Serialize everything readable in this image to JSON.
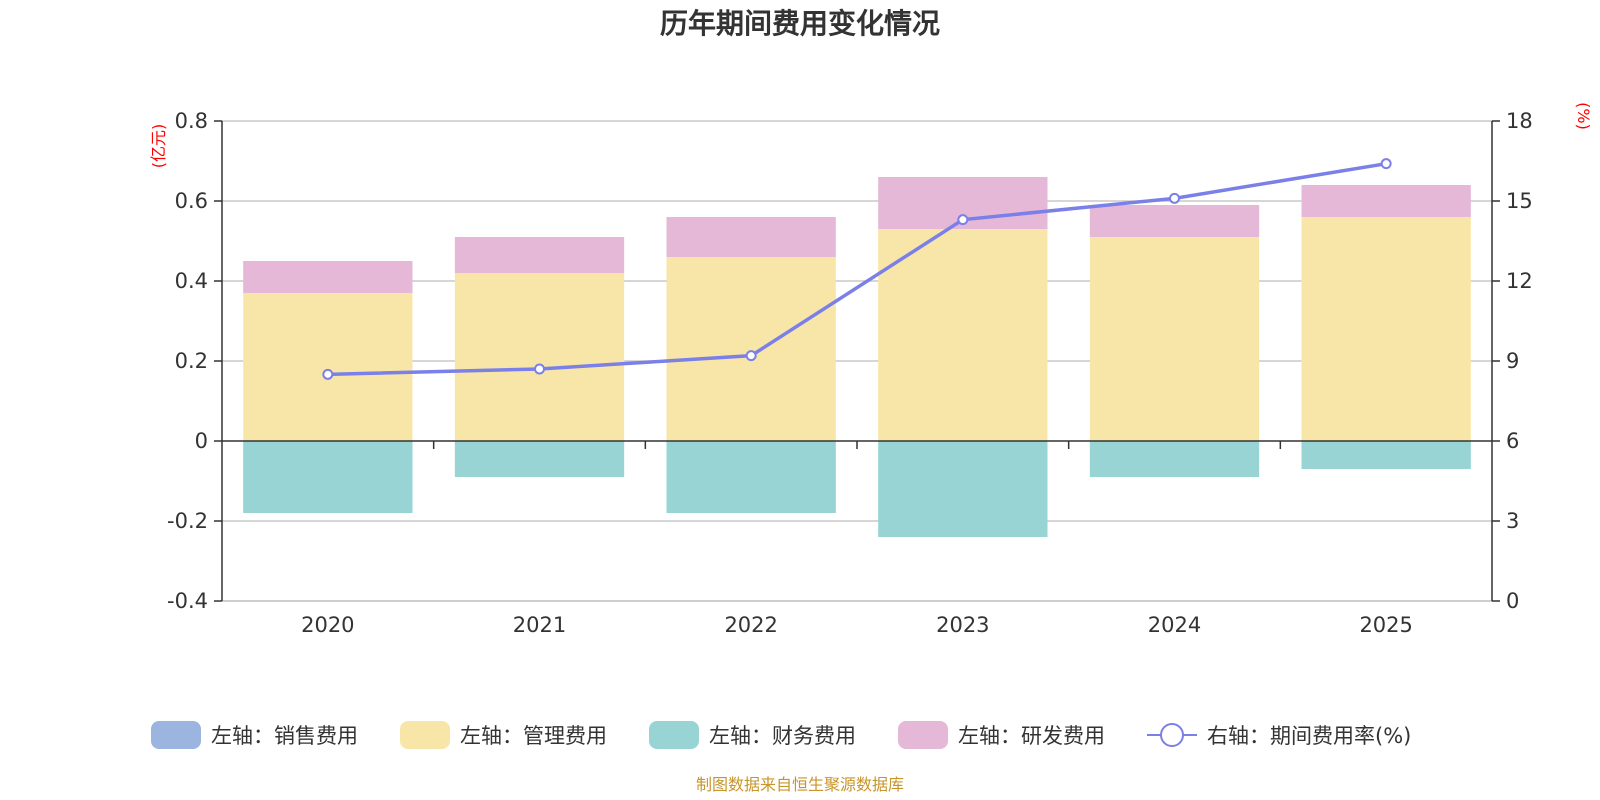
{
  "chart_data": {
    "type": "bar",
    "title": "历年期间费用变化情况",
    "categories": [
      "2020",
      "2021",
      "2022",
      "2023",
      "2024",
      "2025"
    ],
    "stacked": true,
    "left_axis": {
      "unit": "(亿元)",
      "ylim": [
        -0.4,
        0.8
      ],
      "ticks": [
        -0.4,
        -0.2,
        0,
        0.2,
        0.4,
        0.6,
        0.8
      ],
      "tick_labels": [
        "-0.4",
        "-0.2",
        "0",
        "0.2",
        "0.4",
        "0.6",
        "0.8"
      ]
    },
    "right_axis": {
      "unit": "(%)",
      "ylim": [
        0,
        18
      ],
      "ticks": [
        0,
        3,
        6,
        9,
        12,
        15,
        18
      ],
      "tick_labels": [
        "0",
        "3",
        "6",
        "9",
        "12",
        "15",
        "18"
      ]
    },
    "series": [
      {
        "name": "左轴：销售费用",
        "type": "bar",
        "axis": "left",
        "color": "#9bb4e0",
        "values": [
          0,
          0,
          0,
          0,
          0,
          0
        ]
      },
      {
        "name": "左轴：管理费用",
        "type": "bar",
        "axis": "left",
        "color": "#f8e6a8",
        "values": [
          0.37,
          0.42,
          0.46,
          0.53,
          0.51,
          0.56
        ]
      },
      {
        "name": "左轴：财务费用",
        "type": "bar",
        "axis": "left",
        "color": "#98d4d4",
        "values": [
          -0.18,
          -0.09,
          -0.18,
          -0.24,
          -0.09,
          -0.07
        ]
      },
      {
        "name": "左轴：研发费用",
        "type": "bar",
        "axis": "left",
        "color": "#e6b8d8",
        "values": [
          0.08,
          0.09,
          0.1,
          0.13,
          0.08,
          0.08
        ]
      },
      {
        "name": "右轴：期间费用率(%)",
        "type": "line",
        "axis": "right",
        "color": "#7b7fe8",
        "values": [
          8.5,
          8.7,
          9.2,
          14.3,
          15.1,
          16.4
        ]
      }
    ]
  },
  "source_note": "制图数据来自恒生聚源数据库"
}
